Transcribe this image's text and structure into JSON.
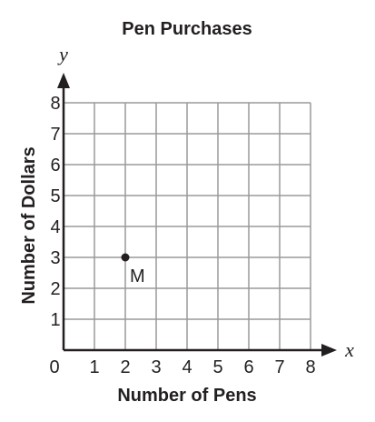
{
  "chart_data": {
    "type": "scatter",
    "title": "Pen Purchases",
    "xlabel": "Number of Pens",
    "ylabel": "Number of Dollars",
    "x_axis_var": "x",
    "y_axis_var": "y",
    "xlim": [
      0,
      8
    ],
    "ylim": [
      0,
      8
    ],
    "x_ticks": [
      "0",
      "1",
      "2",
      "3",
      "4",
      "5",
      "6",
      "7",
      "8"
    ],
    "y_ticks": [
      "1",
      "2",
      "3",
      "4",
      "5",
      "6",
      "7",
      "8"
    ],
    "grid": true,
    "points": [
      {
        "label": "M",
        "x": 2,
        "y": 3
      }
    ],
    "colors": {
      "axis": "#231f20",
      "grid": "#9a9a9a",
      "point": "#231f20"
    }
  }
}
